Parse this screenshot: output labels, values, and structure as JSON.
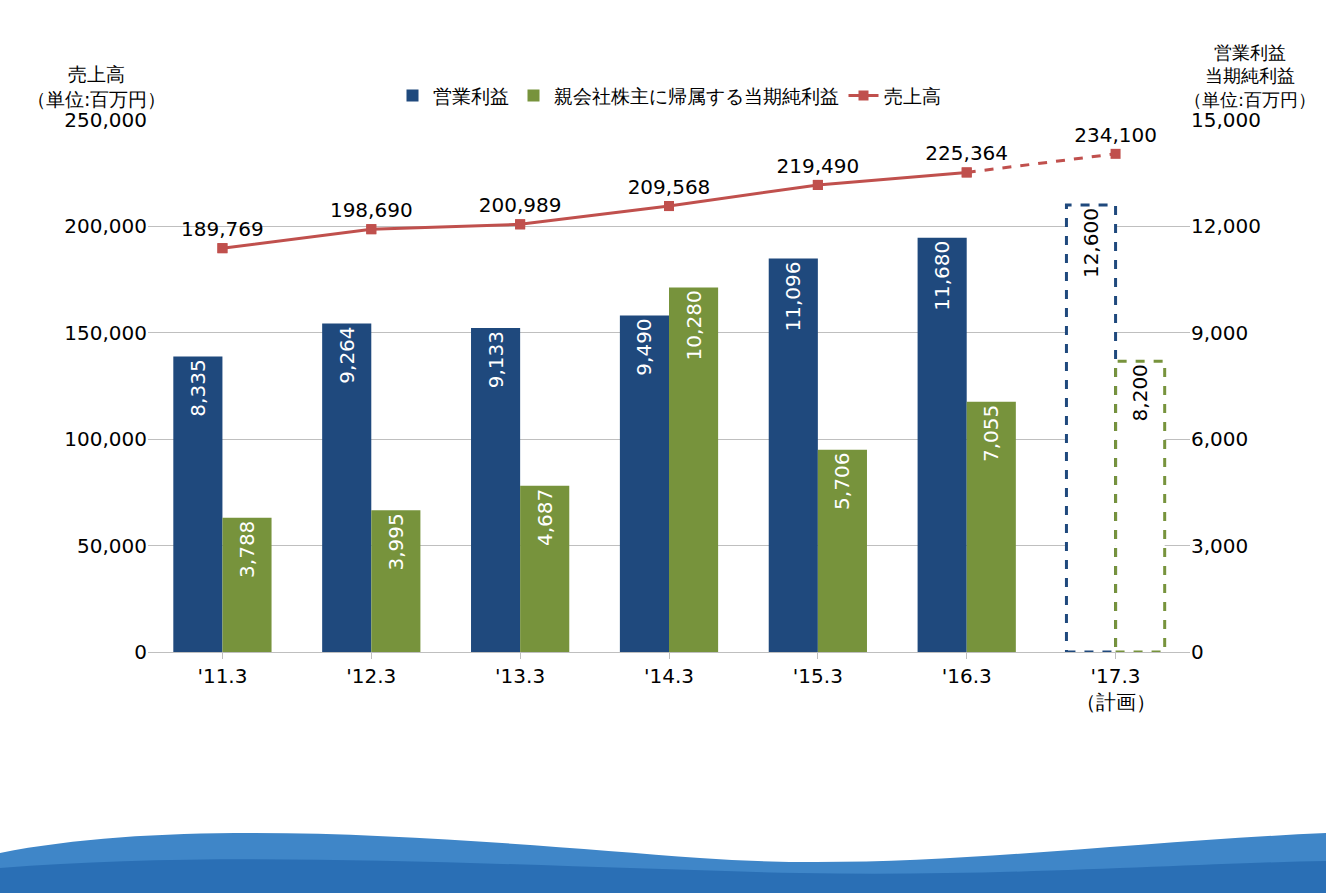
{
  "chart_data": {
    "type": "bar",
    "categories": [
      "'11.3",
      "'12.3",
      "'13.3",
      "'14.3",
      "'15.3",
      "'16.3",
      "'17.3\n（計画）"
    ],
    "y_label": "売上高\n（単位:百万円）",
    "y2_label": "営業利益\n当期純利益\n（単位:百万円）",
    "ylim": [
      0,
      250000
    ],
    "yticks": [
      0,
      {
        "value": 50000,
        "label": "50,000"
      },
      {
        "value": 100000,
        "label": "100,000"
      },
      {
        "value": 150000,
        "label": "150,000"
      },
      {
        "value": 200000,
        "label": "200,000"
      },
      {
        "value": 250000,
        "label": "250,000"
      }
    ],
    "y2lim": [
      0,
      15000
    ],
    "y2ticks": [
      0,
      {
        "value": 3000,
        "label": "3,000"
      },
      {
        "value": 6000,
        "label": "6,000"
      },
      {
        "value": 9000,
        "label": "9,000"
      },
      {
        "value": 12000,
        "label": "12,000"
      },
      {
        "value": 15000,
        "label": "15,000"
      }
    ],
    "grid": true,
    "data_labels": true,
    "legend": "top",
    "series": [
      {
        "name": "営業利益",
        "type": "bar",
        "axis": "y2",
        "color": "#1f497d",
        "values": [
          8335,
          9264,
          9133,
          9490,
          11096,
          11680,
          12600
        ],
        "value_labels": [
          "8,335",
          "9,264",
          "9,133",
          "9,490",
          "11,096",
          "11,680",
          "12,600"
        ]
      },
      {
        "name": "親会社株主に帰属する当期純利益",
        "type": "bar",
        "axis": "y2",
        "color": "#77933c",
        "values": [
          3788,
          3995,
          4687,
          10280,
          5706,
          7055,
          8200
        ],
        "value_labels": [
          "3,788",
          "3,995",
          "4,687",
          "10,280",
          "5,706",
          "7,055",
          "8,200"
        ]
      },
      {
        "name": "売上高",
        "type": "line",
        "axis": "y",
        "color": "#c0504d",
        "marker": "square",
        "values": [
          189769,
          198690,
          200989,
          209568,
          219490,
          225364,
          234100
        ],
        "value_labels": [
          "189,769",
          "198,690",
          "200,989",
          "209,568",
          "219,490",
          "225,364",
          "234,100"
        ]
      }
    ]
  }
}
